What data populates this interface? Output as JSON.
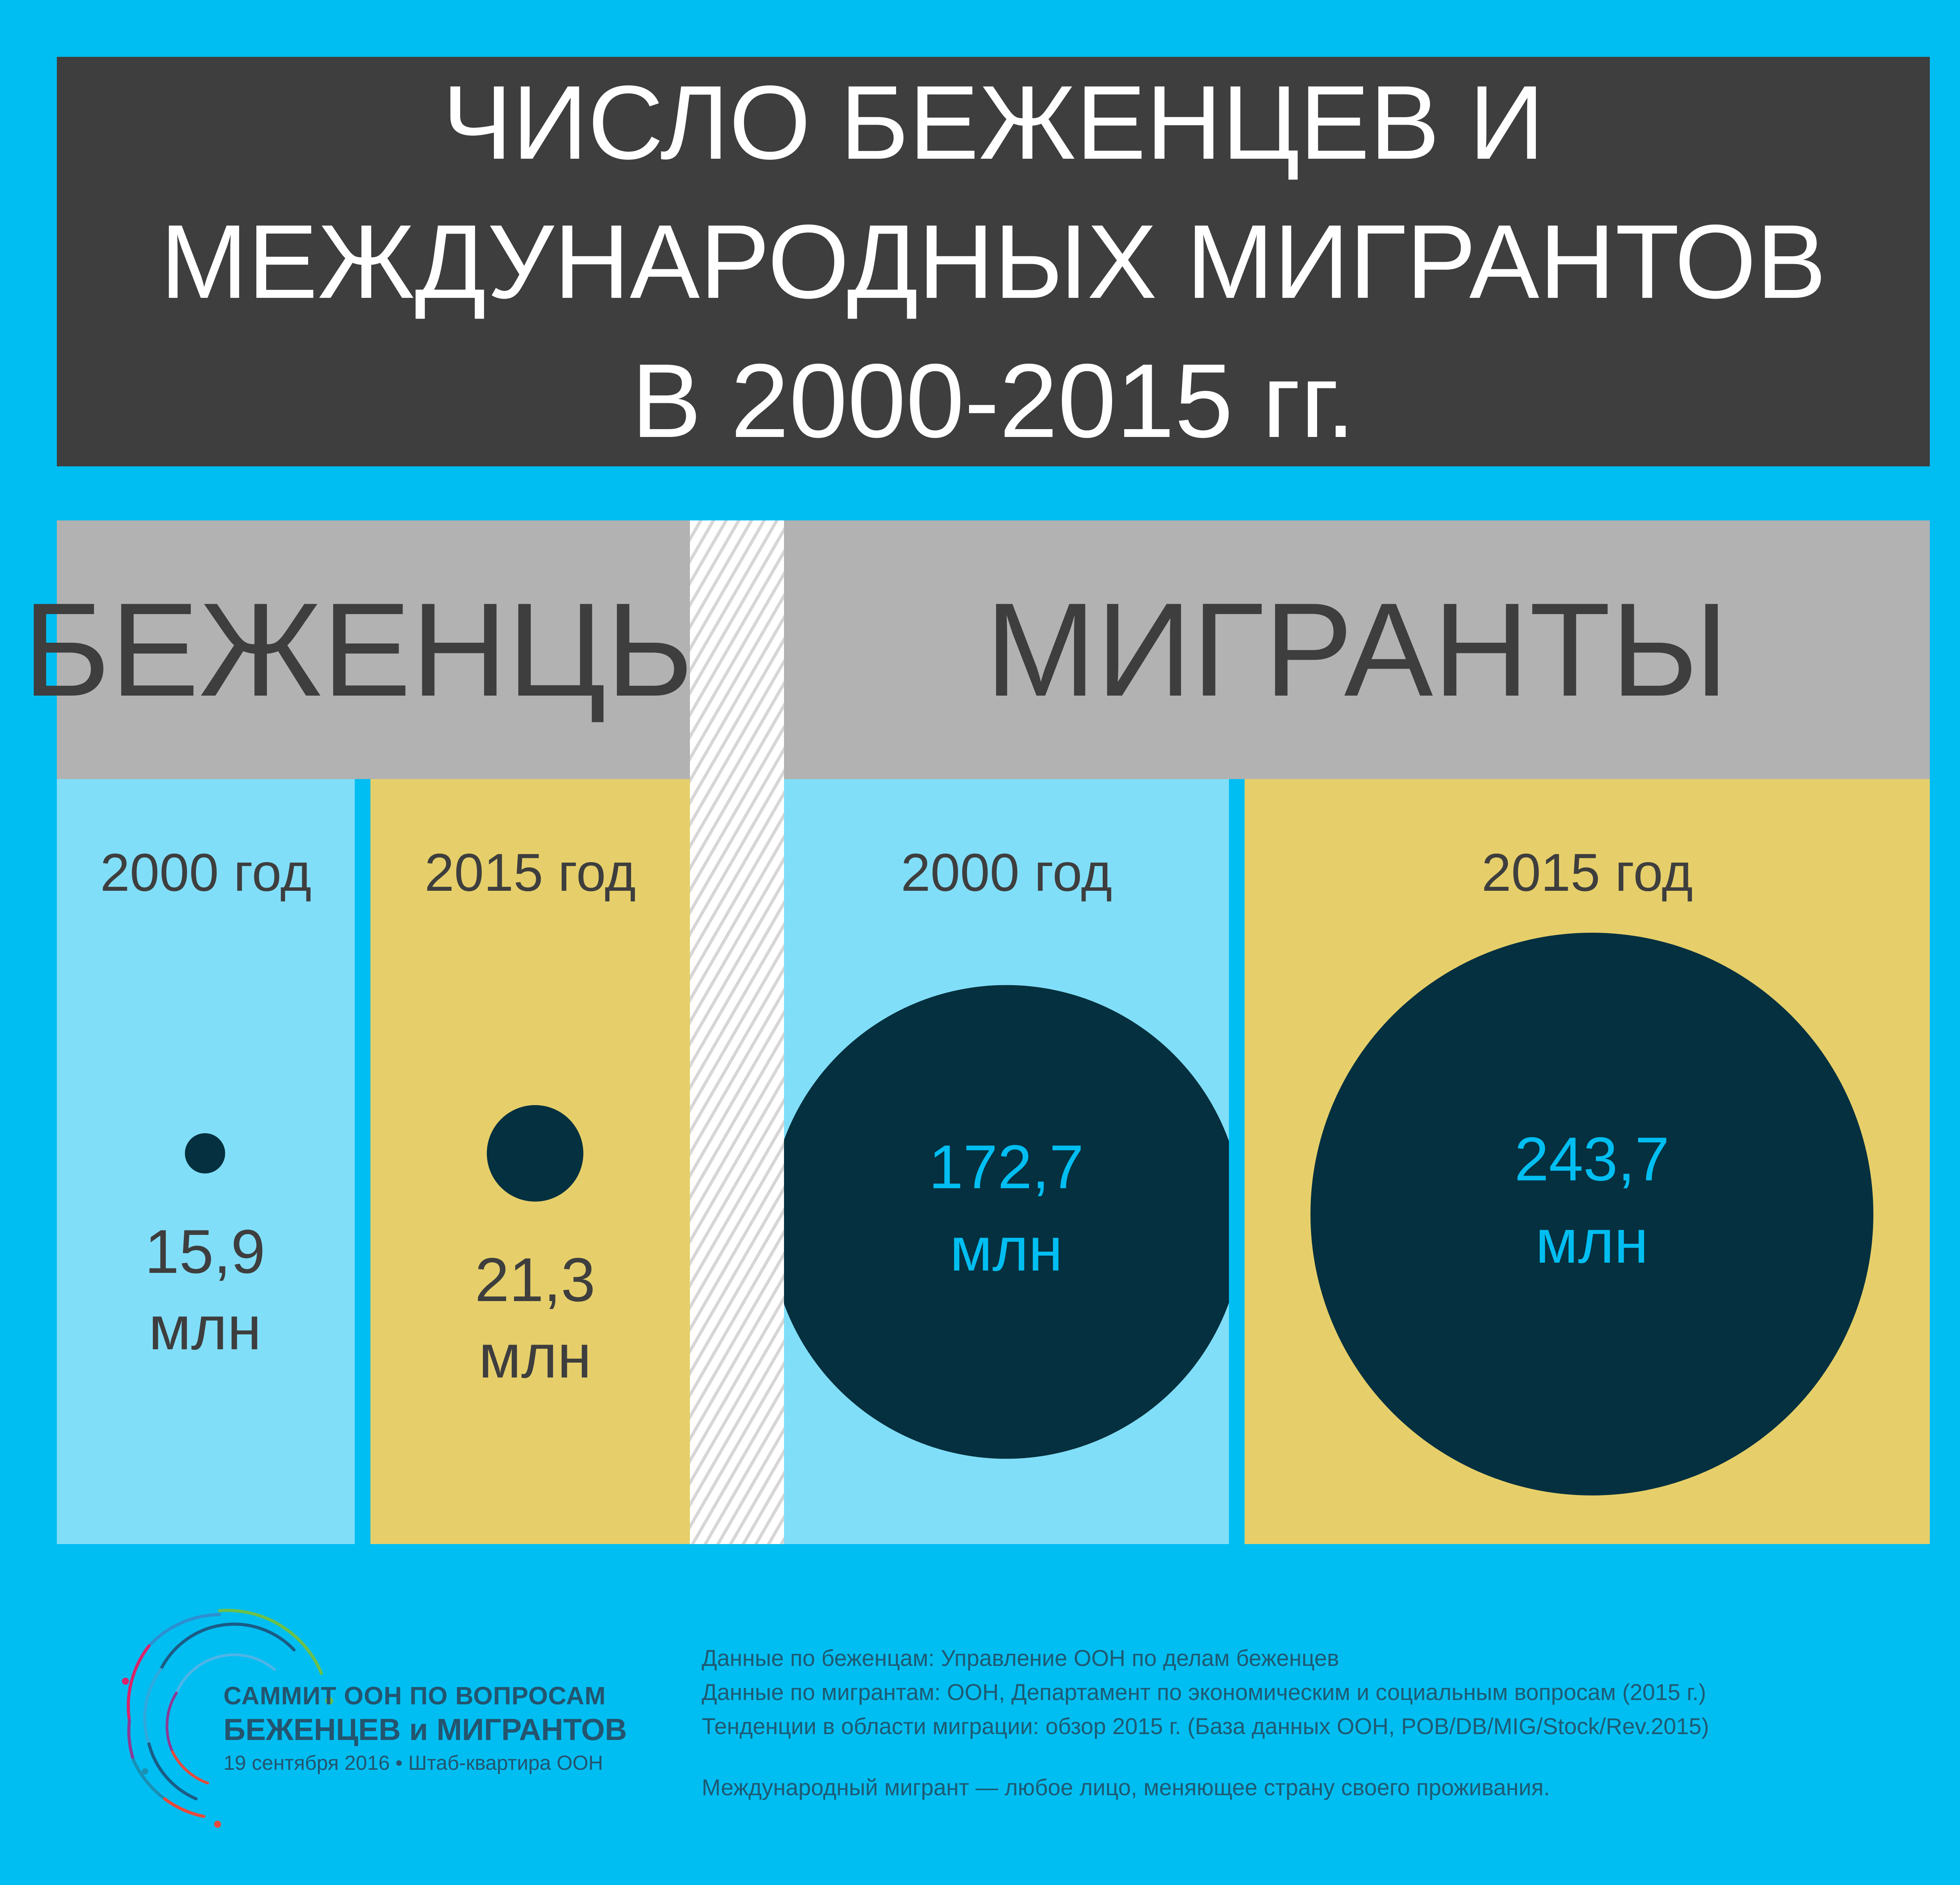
{
  "title": {
    "lines": [
      "ЧИСЛО БЕЖЕНЦЕВ И",
      "МЕЖДУНАРОДНЫХ МИГРАНТОВ",
      "В 2000-2015 гг."
    ]
  },
  "colors": {
    "page_background": "#00BEF2",
    "title_background": "#3E3E3E",
    "header_background": "#B2B2B2",
    "year_2000_column": "#81DEF8",
    "year_2015_column": "#E6CF6A",
    "bubble": "#05303F",
    "bubble_label": "#00BEF2",
    "text_dark": "#3E3E3E"
  },
  "chart_data": {
    "type": "bubble",
    "unit": "млн",
    "groups": [
      {
        "label": "БЕЖЕНЦЫ",
        "points": [
          {
            "year_label": "2000 год",
            "value": 15.9,
            "value_label": "15,9",
            "unit_label": "млн"
          },
          {
            "year_label": "2015 год",
            "value": 21.3,
            "value_label": "21,3",
            "unit_label": "млн"
          }
        ]
      },
      {
        "label": "МИГРАНТЫ",
        "points": [
          {
            "year_label": "2000 год",
            "value": 172.7,
            "value_label": "172,7",
            "unit_label": "млн"
          },
          {
            "year_label": "2015 год",
            "value": 243.7,
            "value_label": "243,7",
            "unit_label": "млн"
          }
        ]
      }
    ]
  },
  "logo": {
    "line1": "САММИТ ООН ПО ВОПРОСАМ",
    "line2": "БЕЖЕНЦЕВ и МИГРАНТОВ",
    "line3": "19 сентября 2016 • Штаб-квартира ООН"
  },
  "sources": [
    "Данные по беженцам: Управление ООН по делам беженцев",
    "Данные по мигрантам: ООН, Департамент по экономическим и социальным вопросам (2015 г.)",
    "Тенденции в области миграции: обзор 2015 г. (База данных ООН, POB/DB/MIG/Stock/Rev.2015)"
  ],
  "note": "Международный мигрант — любое лицо, меняющее страну своего проживания."
}
